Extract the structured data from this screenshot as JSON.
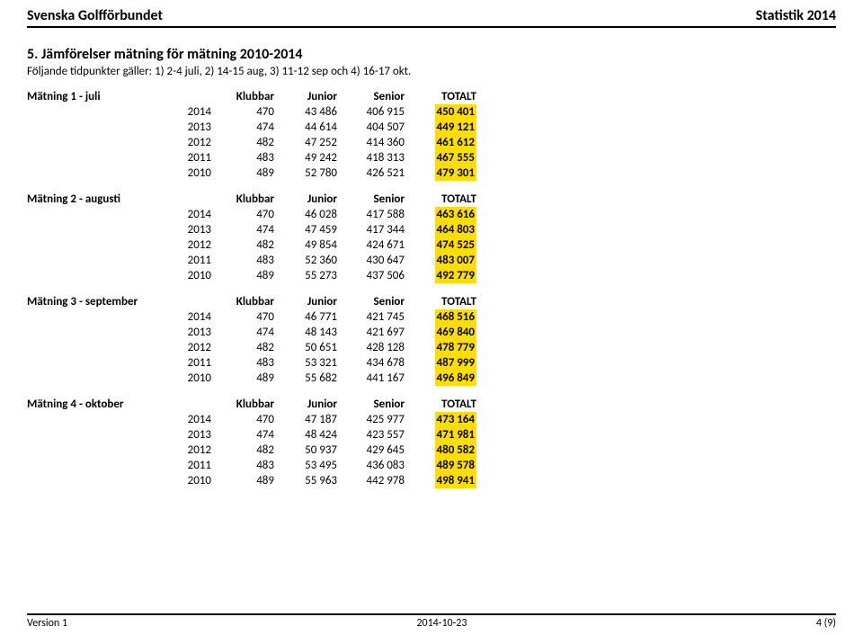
{
  "header": {
    "left": "Svenska Golfförbundet",
    "right": "Statistik 2014"
  },
  "section": {
    "title": "5. Jämförelser mätning för mätning 2010-2014",
    "subtitle": "Följande tidpunkter gäller: 1) 2-4 juli, 2) 14-15 aug, 3) 11-12 sep och 4) 16-17 okt."
  },
  "cols": [
    "Klubbar",
    "Junior",
    "Senior",
    "TOTALT"
  ],
  "tables": [
    {
      "title": "Mätning 1 - juli",
      "rows": [
        {
          "year": "2014",
          "klubbar": "470",
          "junior": "43 486",
          "senior": "406 915",
          "totalt": "450 401"
        },
        {
          "year": "2013",
          "klubbar": "474",
          "junior": "44 614",
          "senior": "404 507",
          "totalt": "449 121"
        },
        {
          "year": "2012",
          "klubbar": "482",
          "junior": "47 252",
          "senior": "414 360",
          "totalt": "461 612"
        },
        {
          "year": "2011",
          "klubbar": "483",
          "junior": "49 242",
          "senior": "418 313",
          "totalt": "467 555"
        },
        {
          "year": "2010",
          "klubbar": "489",
          "junior": "52 780",
          "senior": "426 521",
          "totalt": "479 301"
        }
      ]
    },
    {
      "title": "Mätning 2 - augusti",
      "rows": [
        {
          "year": "2014",
          "klubbar": "470",
          "junior": "46 028",
          "senior": "417 588",
          "totalt": "463 616"
        },
        {
          "year": "2013",
          "klubbar": "474",
          "junior": "47 459",
          "senior": "417 344",
          "totalt": "464 803"
        },
        {
          "year": "2012",
          "klubbar": "482",
          "junior": "49 854",
          "senior": "424 671",
          "totalt": "474 525"
        },
        {
          "year": "2011",
          "klubbar": "483",
          "junior": "52 360",
          "senior": "430 647",
          "totalt": "483 007"
        },
        {
          "year": "2010",
          "klubbar": "489",
          "junior": "55 273",
          "senior": "437 506",
          "totalt": "492 779"
        }
      ]
    },
    {
      "title": "Mätning 3 - september",
      "rows": [
        {
          "year": "2014",
          "klubbar": "470",
          "junior": "46 771",
          "senior": "421 745",
          "totalt": "468 516"
        },
        {
          "year": "2013",
          "klubbar": "474",
          "junior": "48 143",
          "senior": "421 697",
          "totalt": "469 840"
        },
        {
          "year": "2012",
          "klubbar": "482",
          "junior": "50 651",
          "senior": "428 128",
          "totalt": "478 779"
        },
        {
          "year": "2011",
          "klubbar": "483",
          "junior": "53 321",
          "senior": "434 678",
          "totalt": "487 999"
        },
        {
          "year": "2010",
          "klubbar": "489",
          "junior": "55 682",
          "senior": "441 167",
          "totalt": "496 849"
        }
      ]
    },
    {
      "title": "Mätning 4 - oktober",
      "rows": [
        {
          "year": "2014",
          "klubbar": "470",
          "junior": "47 187",
          "senior": "425 977",
          "totalt": "473 164"
        },
        {
          "year": "2013",
          "klubbar": "474",
          "junior": "48 424",
          "senior": "423 557",
          "totalt": "471 981"
        },
        {
          "year": "2012",
          "klubbar": "482",
          "junior": "50 937",
          "senior": "429 645",
          "totalt": "480 582"
        },
        {
          "year": "2011",
          "klubbar": "483",
          "junior": "53 495",
          "senior": "436 083",
          "totalt": "489 578"
        },
        {
          "year": "2010",
          "klubbar": "489",
          "junior": "55 963",
          "senior": "442 978",
          "totalt": "498 941"
        }
      ]
    }
  ],
  "footer": {
    "left": "Version 1",
    "center": "2014-10-23",
    "right": "4 (9)"
  },
  "style": {
    "highlight_bg": "#fedd00",
    "rule_color": "#000000",
    "font_body_pt": 13,
    "font_title_pt": 16
  }
}
